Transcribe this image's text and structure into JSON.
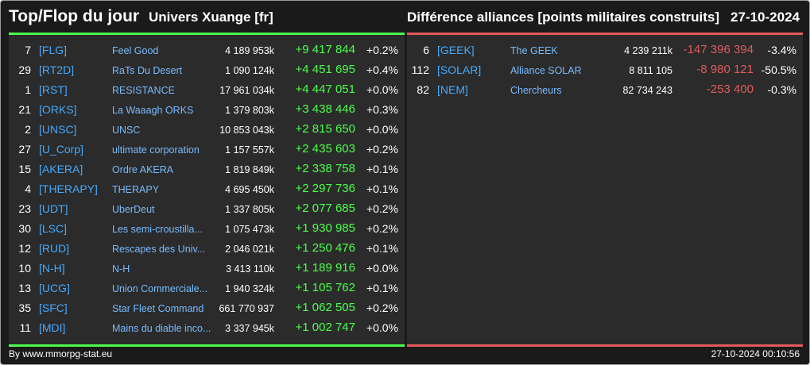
{
  "header": {
    "title": "Top/Flop du jour",
    "server": "Univers Xuange [fr]",
    "subtitle": "Différence alliances [points militaires construits]",
    "date": "27-10-2024"
  },
  "colors": {
    "positive": "#4cff4c",
    "negative": "#e35a5a",
    "tag": "#44aaff"
  },
  "top": [
    {
      "rank": "7",
      "tag": "[FLG]",
      "name": "Feel Good",
      "points": "4 189 953k",
      "diff": "+9 417 844",
      "pct": "+0.2%"
    },
    {
      "rank": "29",
      "tag": "[RT2D]",
      "name": "RaTs Du Desert",
      "points": "1 090 124k",
      "diff": "+4 451 695",
      "pct": "+0.4%"
    },
    {
      "rank": "1",
      "tag": "[RST]",
      "name": "RESISTANCE",
      "points": "17 961 034k",
      "diff": "+4 447 051",
      "pct": "+0.0%"
    },
    {
      "rank": "21",
      "tag": "[ORKS]",
      "name": "La Waaagh ORKS",
      "points": "1 379 803k",
      "diff": "+3 438 446",
      "pct": "+0.3%"
    },
    {
      "rank": "2",
      "tag": "[UNSC]",
      "name": "UNSC",
      "points": "10 853 043k",
      "diff": "+2 815 650",
      "pct": "+0.0%"
    },
    {
      "rank": "27",
      "tag": "[U_Corp]",
      "name": "ultimate corporation",
      "points": "1 157 557k",
      "diff": "+2 435 603",
      "pct": "+0.2%"
    },
    {
      "rank": "15",
      "tag": "[AKERA]",
      "name": "Ordre AKERA",
      "points": "1 819 849k",
      "diff": "+2 338 758",
      "pct": "+0.1%"
    },
    {
      "rank": "4",
      "tag": "[THERAPY]",
      "name": "THERAPY",
      "points": "4 695 450k",
      "diff": "+2 297 736",
      "pct": "+0.1%"
    },
    {
      "rank": "23",
      "tag": "[UDT]",
      "name": "UberDeut",
      "points": "1 337 805k",
      "diff": "+2 077 685",
      "pct": "+0.2%"
    },
    {
      "rank": "30",
      "tag": "[LSC]",
      "name": "Les semi-croustilla...",
      "points": "1 075 473k",
      "diff": "+1 930 985",
      "pct": "+0.2%"
    },
    {
      "rank": "12",
      "tag": "[RUD]",
      "name": "Rescapes des Univ...",
      "points": "2 046 021k",
      "diff": "+1 250 476",
      "pct": "+0.1%"
    },
    {
      "rank": "10",
      "tag": "[N-H]",
      "name": "N-H",
      "points": "3 413 110k",
      "diff": "+1 189 916",
      "pct": "+0.0%"
    },
    {
      "rank": "13",
      "tag": "[UCG]",
      "name": "Union Commerciale...",
      "points": "1 940 324k",
      "diff": "+1 105 762",
      "pct": "+0.1%"
    },
    {
      "rank": "35",
      "tag": "[SFC]",
      "name": "Star Fleet Command",
      "points": "661 770 937",
      "diff": "+1 062 505",
      "pct": "+0.2%"
    },
    {
      "rank": "11",
      "tag": "[MDI]",
      "name": "Mains du diable inco...",
      "points": "3 337 945k",
      "diff": "+1 002 747",
      "pct": "+0.0%"
    }
  ],
  "flop": [
    {
      "rank": "6",
      "tag": "[GEEK]",
      "name": "The GEEK",
      "points": "4 239 211k",
      "diff": "-147 396 394",
      "pct": "-3.4%"
    },
    {
      "rank": "112",
      "tag": "[SOLAR]",
      "name": "Alliance SOLAR",
      "points": "8 811 105",
      "diff": "-8 980 121",
      "pct": "-50.5%"
    },
    {
      "rank": "82",
      "tag": "[NEM]",
      "name": "Chercheurs",
      "points": "82 734 243",
      "diff": "-253 400",
      "pct": "-0.3%"
    }
  ],
  "footer": {
    "source": "By www.mmorpg-stat.eu",
    "timestamp": "27-10-2024 00:10:56"
  }
}
